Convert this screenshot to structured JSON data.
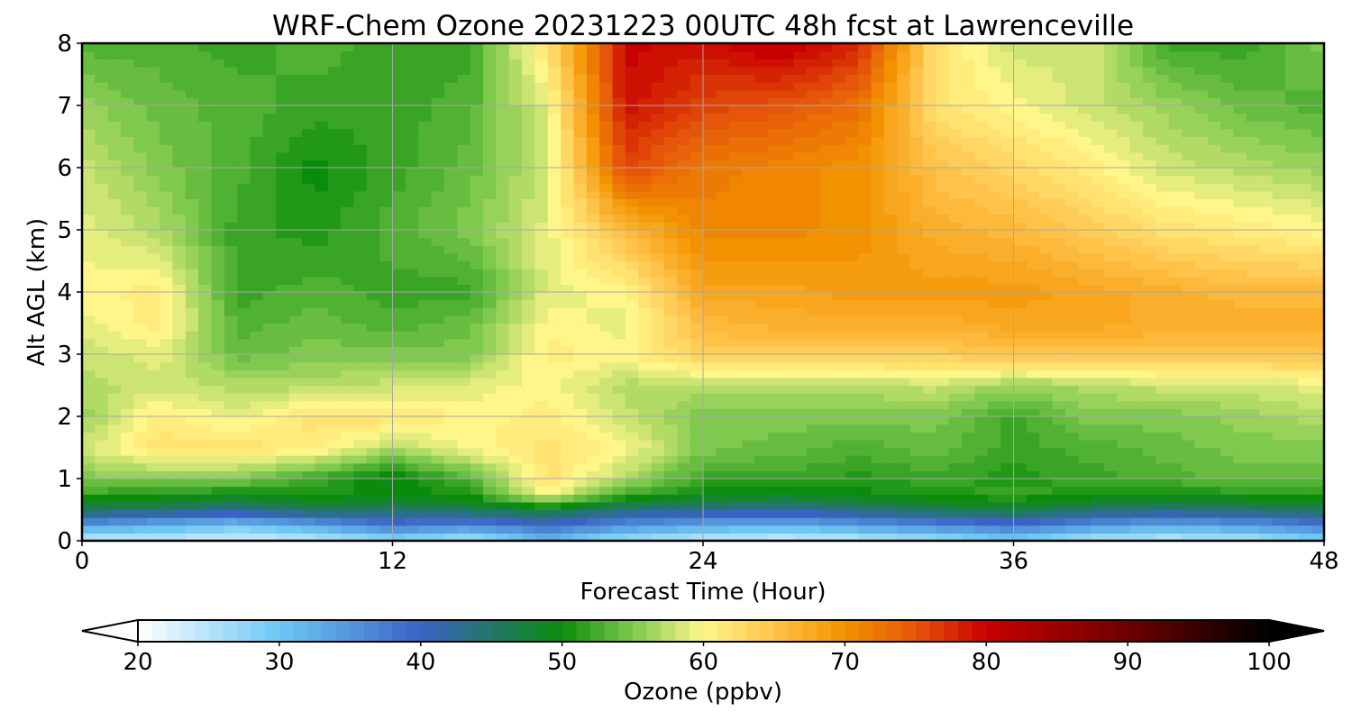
{
  "chart_data": {
    "type": "heatmap",
    "title": "WRF-Chem Ozone  20231223 00UTC 48h fcst at Lawrenceville",
    "xlabel": "Forecast Time (Hour)",
    "ylabel": "Alt AGL (km)",
    "xlim": [
      0,
      48
    ],
    "ylim": [
      0,
      8
    ],
    "x_ticks": [
      "0",
      "12",
      "24",
      "36",
      "48"
    ],
    "y_ticks": [
      "0",
      "1",
      "2",
      "3",
      "4",
      "5",
      "6",
      "7",
      "8"
    ],
    "grid": true,
    "x_hours": [
      0,
      3,
      6,
      9,
      12,
      15,
      18,
      21,
      24,
      27,
      30,
      33,
      36,
      39,
      42,
      45,
      48
    ],
    "y_km": [
      0,
      0.25,
      0.5,
      0.75,
      1,
      1.5,
      2,
      2.5,
      3,
      3.5,
      4,
      5,
      6,
      7,
      8
    ],
    "values_ppbv": [
      [
        24,
        24,
        23,
        24,
        27,
        25,
        31,
        26,
        24,
        23,
        24,
        26,
        29,
        25,
        24,
        25,
        28
      ],
      [
        34,
        32,
        30,
        33,
        38,
        36,
        39,
        35,
        33,
        32,
        34,
        36,
        38,
        35,
        33,
        34,
        37
      ],
      [
        46,
        45,
        43,
        46,
        45,
        46,
        48,
        44,
        43,
        42,
        44,
        46,
        47,
        45,
        44,
        45,
        46
      ],
      [
        52,
        51,
        50,
        51,
        50,
        51,
        60,
        52,
        50,
        49,
        50,
        51,
        52,
        51,
        50,
        51,
        52
      ],
      [
        55,
        55,
        55,
        52,
        49,
        53,
        62,
        57,
        52,
        52,
        51,
        52,
        51,
        52,
        53,
        54,
        54
      ],
      [
        58,
        62,
        62,
        61,
        57,
        60,
        62,
        60,
        55,
        54,
        53,
        54,
        52,
        53,
        54,
        55,
        55
      ],
      [
        56,
        61,
        59,
        62,
        62,
        60,
        61,
        58,
        55,
        55,
        55,
        55,
        52,
        55,
        55,
        56,
        57
      ],
      [
        57,
        58,
        57,
        57,
        58,
        59,
        60,
        57,
        57,
        57,
        57,
        58,
        56,
        57,
        58,
        58,
        59
      ],
      [
        58,
        59,
        54,
        55,
        55,
        55,
        61,
        60,
        64,
        64,
        64,
        64,
        65,
        65,
        65,
        65,
        65
      ],
      [
        59,
        61,
        53,
        54,
        53,
        54,
        60,
        59,
        66,
        67,
        67,
        67,
        68,
        68,
        67,
        67,
        67
      ],
      [
        60,
        61,
        52,
        53,
        52,
        52,
        59,
        60,
        68,
        68,
        69,
        69,
        69,
        68,
        67,
        66,
        66
      ],
      [
        59,
        57,
        52,
        51,
        53,
        55,
        59,
        66,
        71,
        71,
        70,
        67,
        66,
        64,
        62,
        61,
        60
      ],
      [
        58,
        55,
        53,
        50,
        52,
        54,
        58,
        76,
        72,
        71,
        70,
        65,
        63,
        61,
        58,
        57,
        56
      ],
      [
        56,
        54,
        53,
        52,
        52,
        53,
        59,
        79,
        76,
        75,
        73,
        62,
        60,
        58,
        56,
        54,
        53
      ],
      [
        53,
        53,
        52,
        53,
        52,
        52,
        62,
        80,
        79,
        81,
        78,
        62,
        58,
        58,
        52,
        52,
        55
      ]
    ]
  },
  "colorbar": {
    "label": "Ozone  (ppbv)",
    "min": 20,
    "max": 100,
    "extend": "both",
    "ticks": [
      "20",
      "30",
      "40",
      "50",
      "60",
      "70",
      "80",
      "90",
      "100"
    ],
    "stops": [
      {
        "v": 20,
        "c": "#ffffff"
      },
      {
        "v": 30,
        "c": "#6cc8f4"
      },
      {
        "v": 40,
        "c": "#3b62c4"
      },
      {
        "v": 50,
        "c": "#0a8c0a"
      },
      {
        "v": 55,
        "c": "#7fc94e"
      },
      {
        "v": 60,
        "c": "#fff68a"
      },
      {
        "v": 65,
        "c": "#ffc34a"
      },
      {
        "v": 70,
        "c": "#f29200"
      },
      {
        "v": 75,
        "c": "#e6560a"
      },
      {
        "v": 80,
        "c": "#c80000"
      },
      {
        "v": 90,
        "c": "#6e0000"
      },
      {
        "v": 100,
        "c": "#000000"
      }
    ]
  }
}
